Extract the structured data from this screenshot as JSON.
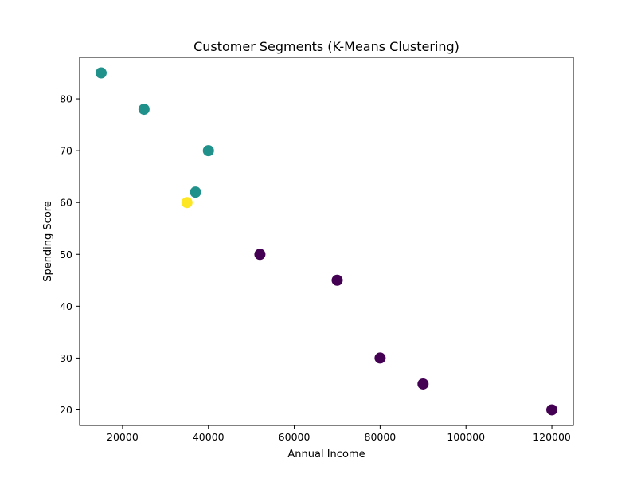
{
  "chart_data": {
    "type": "scatter",
    "title": "Customer Segments (K-Means Clustering)",
    "xlabel": "Annual Income",
    "ylabel": "Spending Score",
    "xlim": [
      10000,
      125000
    ],
    "ylim": [
      17,
      88
    ],
    "xticks": [
      20000,
      40000,
      60000,
      80000,
      100000,
      120000
    ],
    "yticks": [
      20,
      30,
      40,
      50,
      60,
      70,
      80
    ],
    "grid": false,
    "legend": "none",
    "colors": {
      "cluster_0": "#440154",
      "cluster_1": "#21918c",
      "cluster_2": "#fde725"
    },
    "points": [
      {
        "x": 15000,
        "y": 85,
        "cluster": 1
      },
      {
        "x": 25000,
        "y": 78,
        "cluster": 1
      },
      {
        "x": 40000,
        "y": 70,
        "cluster": 1
      },
      {
        "x": 37000,
        "y": 62,
        "cluster": 1
      },
      {
        "x": 35000,
        "y": 60,
        "cluster": 2
      },
      {
        "x": 52000,
        "y": 50,
        "cluster": 0
      },
      {
        "x": 70000,
        "y": 45,
        "cluster": 0
      },
      {
        "x": 80000,
        "y": 30,
        "cluster": 0
      },
      {
        "x": 90000,
        "y": 25,
        "cluster": 0
      },
      {
        "x": 120000,
        "y": 20,
        "cluster": 0
      }
    ]
  }
}
